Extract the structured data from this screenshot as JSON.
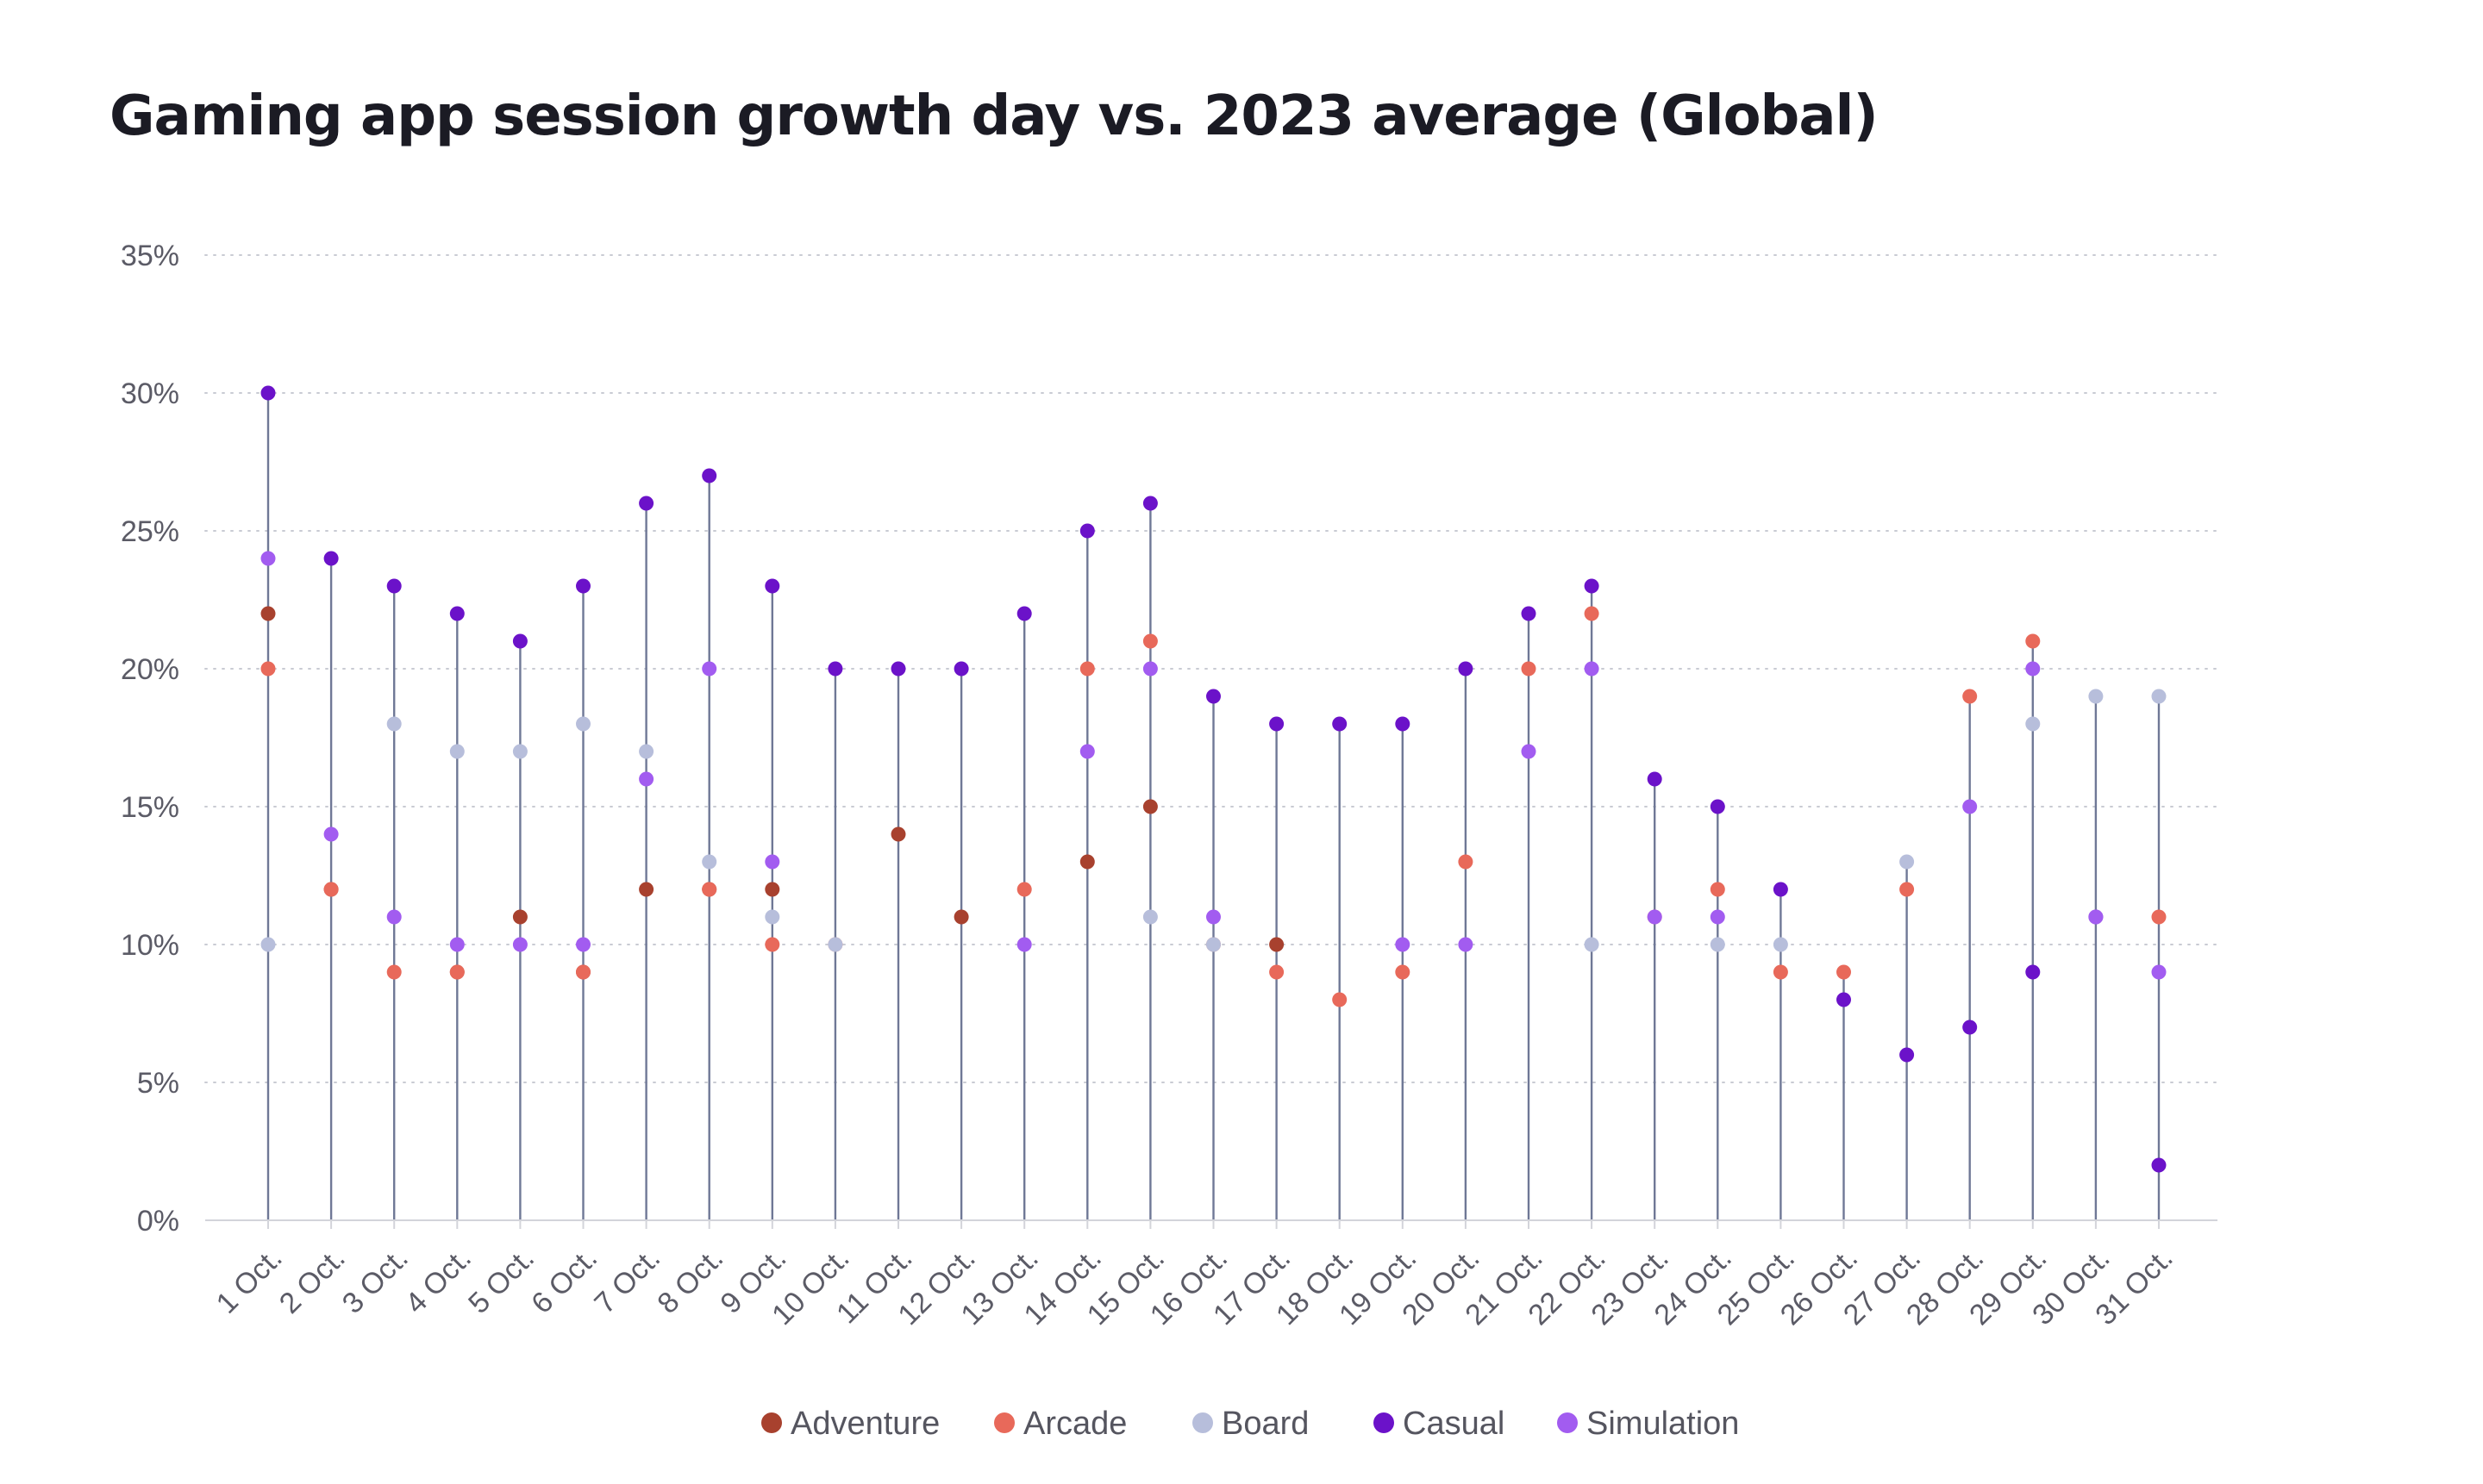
{
  "chart_data": {
    "type": "scatter",
    "title": "Gaming app session growth day vs. 2023 average (Global)",
    "xlabel": "",
    "ylabel": "",
    "ylim": [
      0,
      35
    ],
    "y_ticks": [
      "0%",
      "5%",
      "10%",
      "15%",
      "20%",
      "25%",
      "30%",
      "35%"
    ],
    "y_tick_values": [
      0,
      5,
      10,
      15,
      20,
      25,
      30,
      35
    ],
    "grid": "horizontal dotted",
    "legend_position": "bottom",
    "categories": [
      "1 Oct.",
      "2 Oct.",
      "3 Oct.",
      "4 Oct.",
      "5 Oct.",
      "6 Oct.",
      "7 Oct.",
      "8 Oct.",
      "9 Oct.",
      "10 Oct.",
      "11 Oct.",
      "12 Oct.",
      "13 Oct.",
      "14 Oct.",
      "15 Oct.",
      "16 Oct.",
      "17 Oct.",
      "18 Oct.",
      "19 Oct.",
      "20 Oct.",
      "21 Oct.",
      "22 Oct.",
      "23 Oct.",
      "24 Oct.",
      "25 Oct.",
      "26 Oct.",
      "27 Oct.",
      "28 Oct.",
      "29 Oct.",
      "30 Oct.",
      "31 Oct."
    ],
    "series": [
      {
        "name": "Adventure",
        "color": "#a8412e",
        "values": [
          22,
          12,
          null,
          9,
          11,
          9,
          12,
          12,
          12,
          null,
          14,
          11,
          null,
          13,
          15,
          null,
          10,
          null,
          null,
          null,
          null,
          null,
          null,
          null,
          null,
          null,
          null,
          null,
          null,
          null,
          null
        ]
      },
      {
        "name": "Arcade",
        "color": "#e8695a",
        "values": [
          20,
          12,
          9,
          9,
          null,
          9,
          null,
          12,
          10,
          10,
          null,
          null,
          12,
          20,
          21,
          10,
          9,
          8,
          9,
          13,
          20,
          22,
          11,
          12,
          9,
          9,
          12,
          19,
          21,
          null,
          11
        ]
      },
      {
        "name": "Board",
        "color": "#b7bedb",
        "values": [
          10,
          null,
          18,
          17,
          17,
          18,
          17,
          13,
          11,
          10,
          null,
          null,
          null,
          null,
          11,
          10,
          null,
          null,
          null,
          null,
          null,
          10,
          null,
          10,
          10,
          null,
          13,
          null,
          18,
          19,
          19
        ]
      },
      {
        "name": "Casual",
        "color": "#6b12c9",
        "values": [
          30,
          24,
          23,
          22,
          21,
          23,
          26,
          27,
          23,
          20,
          20,
          20,
          22,
          25,
          26,
          19,
          18,
          18,
          18,
          20,
          22,
          23,
          16,
          15,
          12,
          8,
          6,
          7,
          9,
          11,
          2
        ]
      },
      {
        "name": "Simulation",
        "color": "#a25cf0",
        "values": [
          24,
          14,
          11,
          10,
          10,
          10,
          16,
          20,
          13,
          null,
          null,
          null,
          10,
          17,
          20,
          11,
          null,
          null,
          10,
          10,
          17,
          20,
          11,
          11,
          null,
          null,
          null,
          15,
          20,
          11,
          9
        ]
      }
    ]
  }
}
